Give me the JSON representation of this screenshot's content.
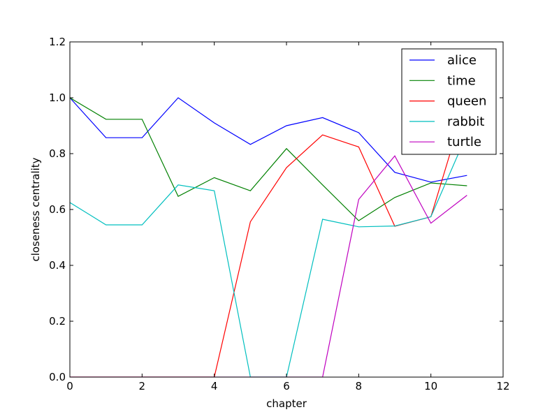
{
  "chart_data": {
    "type": "line",
    "title": "",
    "xlabel": "chapter",
    "ylabel": "closeness centrality",
    "xlim": [
      0,
      12
    ],
    "ylim": [
      0.0,
      1.2
    ],
    "xticks": [
      "0",
      "2",
      "4",
      "6",
      "8",
      "10",
      "12"
    ],
    "yticks": [
      "0.0",
      "0.2",
      "0.4",
      "0.6",
      "0.8",
      "1.0",
      "1.2"
    ],
    "grid": false,
    "legend_position": "top-right",
    "x": [
      0,
      1,
      2,
      3,
      4,
      5,
      6,
      7,
      8,
      9,
      10,
      11
    ],
    "series": [
      {
        "name": "alice",
        "color": "#0000ff",
        "values": [
          1.0,
          0.857,
          0.857,
          1.0,
          0.91,
          0.833,
          0.9,
          0.929,
          0.875,
          0.733,
          0.698,
          0.722
        ]
      },
      {
        "name": "time",
        "color": "#008000",
        "values": [
          1.0,
          0.923,
          0.923,
          0.647,
          0.714,
          0.667,
          0.818,
          0.688,
          0.56,
          0.643,
          0.695,
          0.685
        ]
      },
      {
        "name": "queen",
        "color": "#ff0000",
        "values": [
          0.0,
          0.0,
          0.0,
          0.0,
          0.0,
          0.556,
          0.75,
          0.867,
          0.824,
          0.54,
          0.574,
          1.0
        ]
      },
      {
        "name": "rabbit",
        "color": "#00bfbf",
        "values": [
          0.625,
          0.545,
          0.545,
          0.688,
          0.667,
          0.0,
          0.0,
          0.565,
          0.538,
          0.541,
          0.574,
          0.87
        ]
      },
      {
        "name": "turtle",
        "color": "#bf00bf",
        "values": [
          0.0,
          0.0,
          0.0,
          0.0,
          0.0,
          0.0,
          0.0,
          0.0,
          0.636,
          0.792,
          0.551,
          0.651
        ]
      }
    ]
  }
}
